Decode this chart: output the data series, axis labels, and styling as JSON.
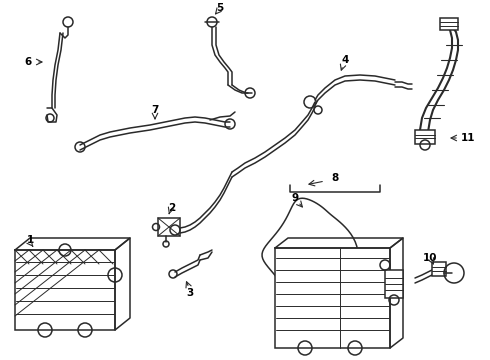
{
  "background": "#ffffff",
  "line_color": "#2a2a2a",
  "label_color": "#000000",
  "lw": 1.1,
  "lw_thick": 1.5,
  "figsize": [
    4.9,
    3.6
  ],
  "dpi": 100
}
